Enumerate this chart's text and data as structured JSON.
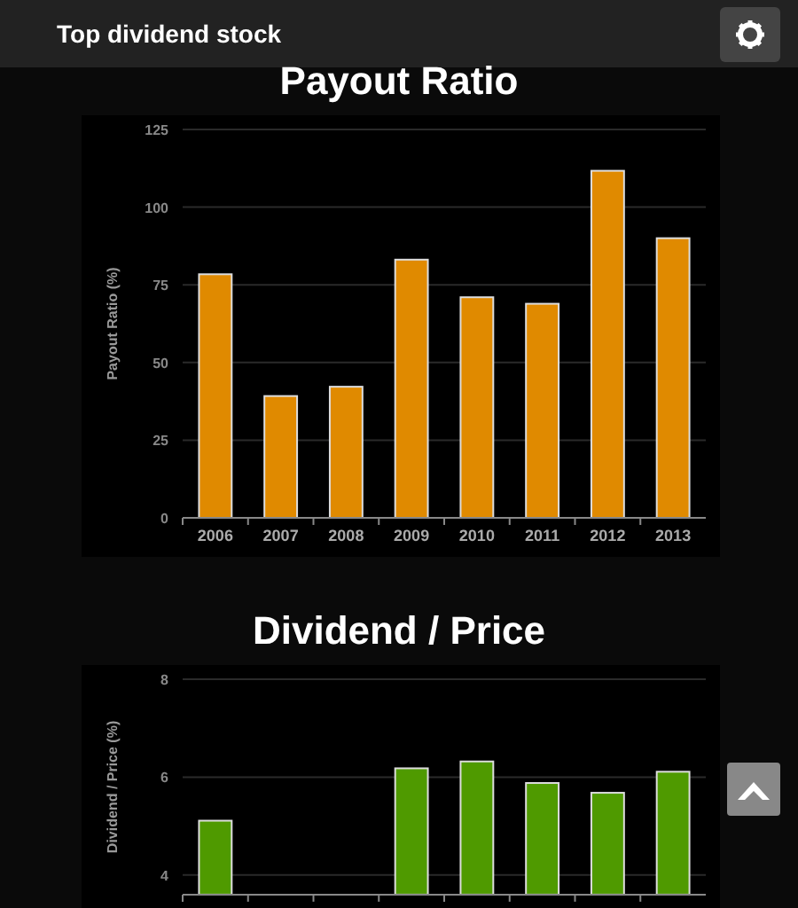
{
  "chart_data": [
    {
      "type": "other",
      "title": "Top dividend stock"
    },
    {
      "type": "bar",
      "title": "Payout Ratio",
      "ylabel": "Payout Ratio (%)",
      "categories": [
        "2006",
        "2007",
        "2008",
        "2009",
        "2010",
        "2011",
        "2012",
        "2013"
      ],
      "values": [
        78.4,
        39.2,
        42.2,
        83.1,
        71,
        68.9,
        111.7,
        90
      ],
      "color": "#e08a00",
      "ylim": [
        0,
        125
      ],
      "yticks": [
        0,
        25,
        50,
        75,
        100,
        125
      ],
      "grid": "y"
    },
    {
      "type": "bar",
      "title": "Dividend / Price",
      "ylabel": "Dividend / Price (%)",
      "categories": [
        null,
        null,
        null,
        null,
        null,
        null,
        null,
        null
      ],
      "values": [
        5.11,
        null,
        null,
        6.18,
        6.32,
        5.88,
        5.68,
        6.11
      ],
      "color": "#4f9a00",
      "ylim": [
        3.6,
        8
      ],
      "yticks": [
        4,
        6,
        8
      ],
      "grid": "y",
      "tick_labels": "y"
    }
  ]
}
